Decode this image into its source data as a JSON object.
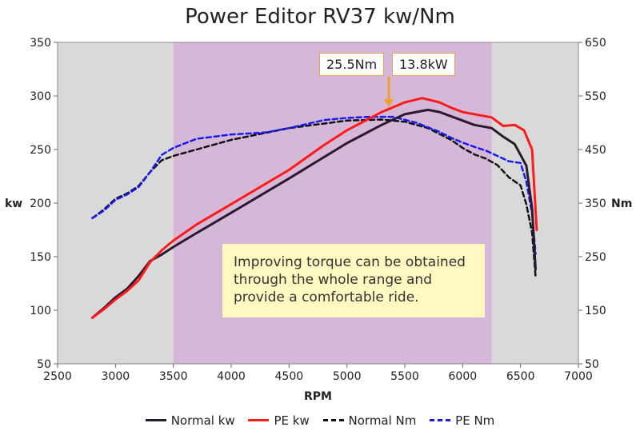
{
  "chart_data": {
    "type": "line",
    "title": "Power Editor RV37 kw/Nm",
    "xlabel": "RPM",
    "ylabel_left": "kw",
    "ylabel_right": "Nm",
    "xlim": [
      2500,
      7000
    ],
    "ylim_left": [
      50,
      350
    ],
    "ylim_right": [
      50,
      650
    ],
    "x_ticks": [
      2500,
      3000,
      3500,
      4000,
      4500,
      5000,
      5500,
      6000,
      6500,
      7000
    ],
    "y_ticks_left": [
      50,
      100,
      150,
      200,
      250,
      300,
      350
    ],
    "y_ticks_right": [
      50,
      150,
      250,
      350,
      450,
      550,
      650
    ],
    "highlight_range": [
      3500,
      6250
    ],
    "colors": {
      "plot_bg": "#d9d9d9",
      "highlight": "#d5b8d8",
      "normal_kw": "#2a1a2e",
      "pe_kw": "#ff1a1a",
      "normal_nm": "#111111",
      "pe_nm": "#1a1aee",
      "note_bg": "#fff8c0",
      "callout_border": "#f0a050"
    },
    "legend_position": "bottom",
    "series": [
      {
        "name": "Normal kw",
        "axis": "left",
        "style": "solid",
        "x": [
          2800,
          2900,
          3000,
          3100,
          3200,
          3300,
          3400,
          3500,
          3700,
          4000,
          4500,
          5000,
          5300,
          5500,
          5700,
          5800,
          6000,
          6100,
          6250,
          6350,
          6450,
          6550,
          6600,
          6630
        ],
        "y": [
          93,
          102,
          112,
          120,
          132,
          146,
          152,
          159,
          172,
          191,
          223,
          256,
          273,
          283,
          287,
          285,
          277,
          273,
          270,
          262,
          255,
          235,
          195,
          138
        ]
      },
      {
        "name": "PE kw",
        "axis": "left",
        "style": "solid",
        "x": [
          2800,
          2900,
          3000,
          3100,
          3200,
          3300,
          3400,
          3500,
          3700,
          4000,
          4500,
          4800,
          5000,
          5300,
          5500,
          5650,
          5800,
          5900,
          6000,
          6100,
          6250,
          6350,
          6450,
          6530,
          6600,
          6640
        ],
        "y": [
          93,
          101,
          110,
          118,
          128,
          145,
          156,
          165,
          180,
          199,
          231,
          254,
          268,
          285,
          294,
          298,
          294,
          289,
          285,
          283,
          280,
          272,
          273,
          268,
          250,
          175
        ]
      },
      {
        "name": "Normal Nm",
        "axis": "right",
        "style": "dashed",
        "x": [
          2800,
          2900,
          3000,
          3100,
          3200,
          3300,
          3400,
          3500,
          4000,
          4500,
          5000,
          5300,
          5500,
          5700,
          5900,
          6000,
          6100,
          6200,
          6300,
          6400,
          6500,
          6550,
          6600,
          6630
        ],
        "y": [
          322,
          338,
          358,
          368,
          382,
          408,
          430,
          438,
          468,
          490,
          504,
          506,
          502,
          490,
          468,
          453,
          441,
          433,
          421,
          398,
          383,
          348,
          295,
          212
        ]
      },
      {
        "name": "PE Nm",
        "axis": "right",
        "style": "dashed",
        "x": [
          2800,
          2900,
          3000,
          3100,
          3200,
          3300,
          3400,
          3500,
          3700,
          4000,
          4300,
          4500,
          4800,
          5000,
          5200,
          5400,
          5600,
          5800,
          5900,
          6000,
          6100,
          6200,
          6300,
          6400,
          6500,
          6550,
          6600,
          6630
        ],
        "y": [
          322,
          336,
          356,
          366,
          380,
          408,
          440,
          453,
          470,
          478,
          482,
          490,
          505,
          509,
          511,
          511,
          500,
          483,
          472,
          463,
          455,
          448,
          438,
          428,
          425,
          390,
          330,
          255
        ]
      }
    ],
    "annotations": {
      "callout_nm": "25.5Nm",
      "callout_kw": "13.8kW",
      "note": "Improving torque can be obtained through the whole range and provide a comfortable ride."
    }
  }
}
